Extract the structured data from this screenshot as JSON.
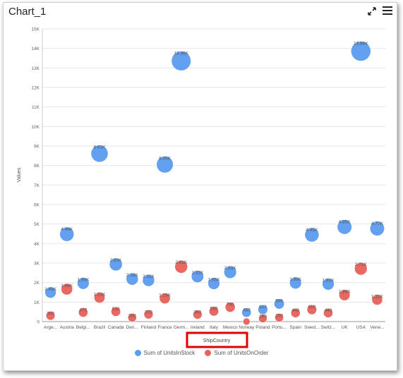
{
  "header": {
    "title": "Chart_1",
    "expand_icon": "expand-icon",
    "menu_icon": "hamburger-menu-icon"
  },
  "colors": {
    "stock": "#5b9bf0",
    "order": "#e8625a",
    "highlight_box": "#e00000",
    "grid": "#e6e6e6"
  },
  "chart_data": {
    "type": "scatter",
    "xlabel": "ShipCountry",
    "ylabel": "Values",
    "ylim": [
      0,
      15000
    ],
    "y_ticks": [
      "0",
      "1K",
      "2K",
      "3K",
      "4K",
      "5K",
      "6K",
      "7K",
      "8K",
      "9K",
      "10K",
      "11K",
      "12K",
      "13K",
      "14K",
      "15K"
    ],
    "categories": [
      "Arge...",
      "Austria",
      "Belgi...",
      "Brazil",
      "Canada",
      "Den...",
      "Finland",
      "France",
      "Germ...",
      "Ireland",
      "Italy",
      "Mexico",
      "Norway",
      "Poland",
      "Portu...",
      "Spain",
      "Swed...",
      "Switz...",
      "UK",
      "USA",
      "Vene..."
    ],
    "series": [
      {
        "name": "Sum of UnitsInStock",
        "values": [
          1490,
          4480,
          1960,
          8610,
          2930,
          2180,
          2110,
          8050,
          13360,
          2310,
          1950,
          2530,
          463,
          613,
          906,
          1980,
          4450,
          1920,
          4850,
          13860,
          4770
        ],
        "labels": [
          "1.49K",
          "4.48K",
          "1.96K",
          "8.61K",
          "2.93K",
          "2.18K",
          "2.11K",
          "8.05K",
          "13.36K",
          "2.31K",
          "1.95K",
          "2.53K",
          "463",
          "613",
          "906",
          "1.98K",
          "4.45K",
          "1.92K",
          "4.85K",
          "13.86K",
          "4.77K"
        ]
      },
      {
        "name": "Sum of UnitsOnOrder",
        "values": [
          300,
          1660,
          470,
          1230,
          510,
          200,
          370,
          1190,
          2810,
          360,
          530,
          740,
          0,
          160,
          200,
          440,
          610,
          440,
          1360,
          2710,
          1120
        ],
        "labels": [
          "300",
          "1.66K",
          "470",
          "1.23K",
          "510",
          "200",
          "370",
          "1.19K",
          "2.81K",
          "360",
          "530",
          "740",
          "",
          "160",
          "200",
          "440",
          "610",
          "440",
          "1.36K",
          "2.71K",
          "1.12K"
        ]
      }
    ],
    "legend_position": "bottom",
    "grid": true
  }
}
